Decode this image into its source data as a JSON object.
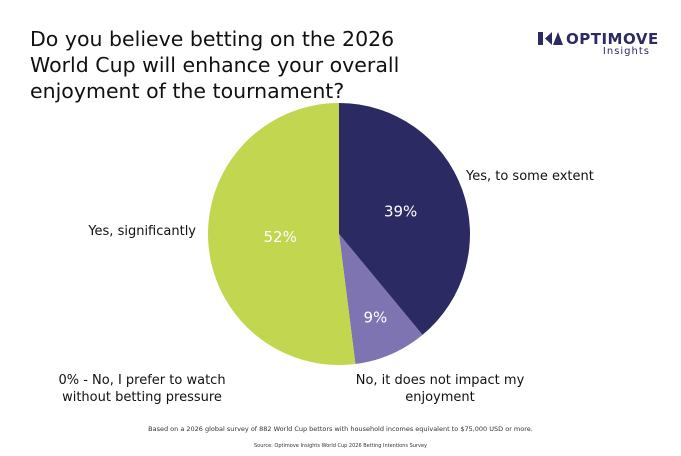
{
  "chart_data": {
    "type": "pie",
    "title": "Do you believe betting on the 2026 World Cup will enhance your overall enjoyment of the tournament?",
    "brand": "OPTIMOVE",
    "brand_subtitle": "Insights",
    "categories": [
      "Yes, to some extent",
      "No, it does not impact my enjoyment",
      "Yes, significantly",
      "0% - No, I prefer to watch without betting pressure"
    ],
    "values": [
      39,
      9,
      52,
      0
    ],
    "value_labels": [
      "39%",
      "9%",
      "52%",
      null
    ],
    "colors": [
      "#2c2a63",
      "#7d74b1",
      "#c2d650",
      "#e0e0e0"
    ],
    "footnote": "Based on a 2026 global survey of 882 World Cup bettors with household incomes equivalent to $75,000 USD or more.",
    "source": "Source: Optimove Insights World Cup 2026 Betting Intentions Survey"
  }
}
